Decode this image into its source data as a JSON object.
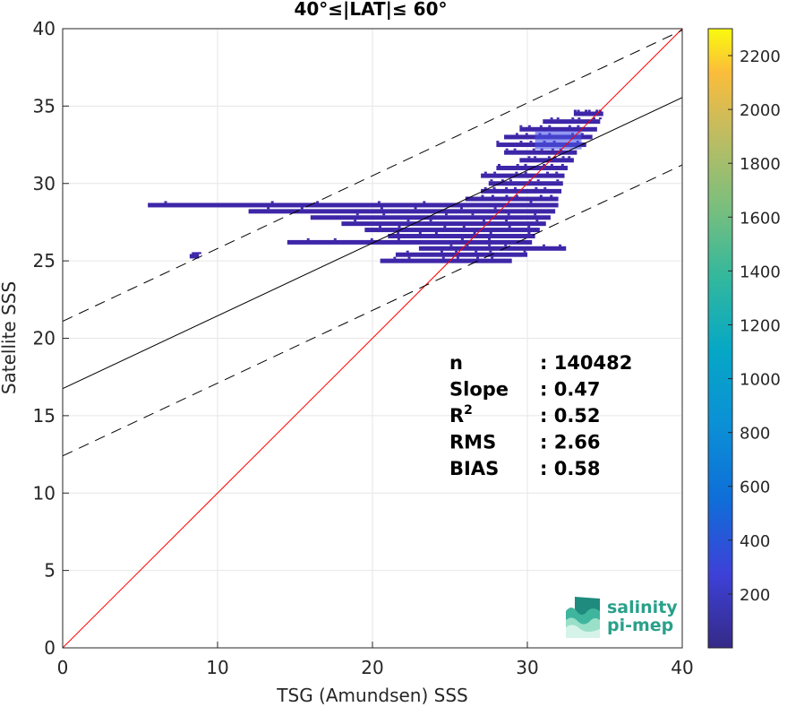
{
  "chart_data": {
    "type": "scatter",
    "title": "40°≤|LAT|≤ 60°",
    "xlabel": "TSG (Amundsen) SSS",
    "ylabel": "Satellite SSS",
    "xlim": [
      0,
      40
    ],
    "ylim": [
      0,
      40
    ],
    "xticks": [
      "0",
      "10",
      "20",
      "30",
      "40"
    ],
    "yticks": [
      "0",
      "5",
      "10",
      "15",
      "20",
      "25",
      "30",
      "35",
      "40"
    ],
    "grid": true,
    "colorbar": {
      "range": [
        0,
        2300
      ],
      "ticks": [
        "200",
        "400",
        "600",
        "800",
        "1000",
        "1200",
        "1400",
        "1600",
        "1800",
        "2000",
        "2200"
      ],
      "colormap": "parula"
    },
    "lines": [
      {
        "label": "1:1 line",
        "color": "#ff0000",
        "style": "solid",
        "intercept": 0,
        "slope": 1
      },
      {
        "label": "regression fit",
        "color": "#000000",
        "style": "solid",
        "intercept": 16.75,
        "slope": 0.47
      },
      {
        "label": "fit + 2 RMS",
        "color": "#000000",
        "style": "dashed",
        "intercept": 21.1,
        "slope": 0.47
      },
      {
        "label": "fit - 2 RMS",
        "color": "#000000",
        "style": "dashed",
        "intercept": 12.4,
        "slope": 0.47
      }
    ],
    "density_rows": [
      {
        "y": 34.5,
        "x": [
          33.0,
          34.9
        ]
      },
      {
        "y": 34.0,
        "x": [
          31.0,
          34.7
        ]
      },
      {
        "y": 33.5,
        "x": [
          29.5,
          34.5
        ]
      },
      {
        "y": 33.0,
        "x": [
          28.5,
          34.2
        ]
      },
      {
        "y": 32.5,
        "x": [
          28.0,
          33.8
        ]
      },
      {
        "y": 32.0,
        "x": [
          28.5,
          33.2
        ]
      },
      {
        "y": 31.5,
        "x": [
          29.5,
          33.0
        ]
      },
      {
        "y": 31.0,
        "x": [
          28.0,
          32.6
        ]
      },
      {
        "y": 30.5,
        "x": [
          27.0,
          32.4
        ]
      },
      {
        "y": 30.0,
        "x": [
          27.5,
          32.3
        ]
      },
      {
        "y": 29.5,
        "x": [
          27.0,
          32.2
        ]
      },
      {
        "y": 29.0,
        "x": [
          26.0,
          32.0
        ]
      },
      {
        "y": 28.6,
        "x": [
          5.5,
          32.0
        ]
      },
      {
        "y": 28.2,
        "x": [
          12.0,
          31.8
        ]
      },
      {
        "y": 27.8,
        "x": [
          16.0,
          31.5
        ]
      },
      {
        "y": 27.4,
        "x": [
          18.0,
          31.2
        ]
      },
      {
        "y": 27.0,
        "x": [
          19.5,
          30.8
        ]
      },
      {
        "y": 26.6,
        "x": [
          21.0,
          30.5
        ]
      },
      {
        "y": 26.2,
        "x": [
          14.5,
          30.3
        ]
      },
      {
        "y": 25.8,
        "x": [
          23.0,
          32.5
        ]
      },
      {
        "y": 25.4,
        "x": [
          21.5,
          30.0
        ]
      },
      {
        "y": 25.0,
        "x": [
          20.5,
          29.0
        ]
      },
      {
        "y": 25.3,
        "x": [
          8.2,
          8.8
        ]
      }
    ],
    "stats": [
      {
        "label": "n",
        "value": ": 140482"
      },
      {
        "label": "Slope",
        "value": ": 0.47"
      },
      {
        "label": "R",
        "sup": "2",
        "value": ": 0.52"
      },
      {
        "label": "RMS",
        "value": ": 2.66"
      },
      {
        "label": "BIAS",
        "value": ": 0.58"
      }
    ]
  },
  "logo": {
    "line1": "salinity",
    "line2": "pi-mep",
    "color": "#2aa08a"
  },
  "colors": {
    "plot_bg": "#ffffff",
    "grid": "#e6e6e6",
    "axis": "#262626",
    "scatter": "#3e26a8"
  }
}
